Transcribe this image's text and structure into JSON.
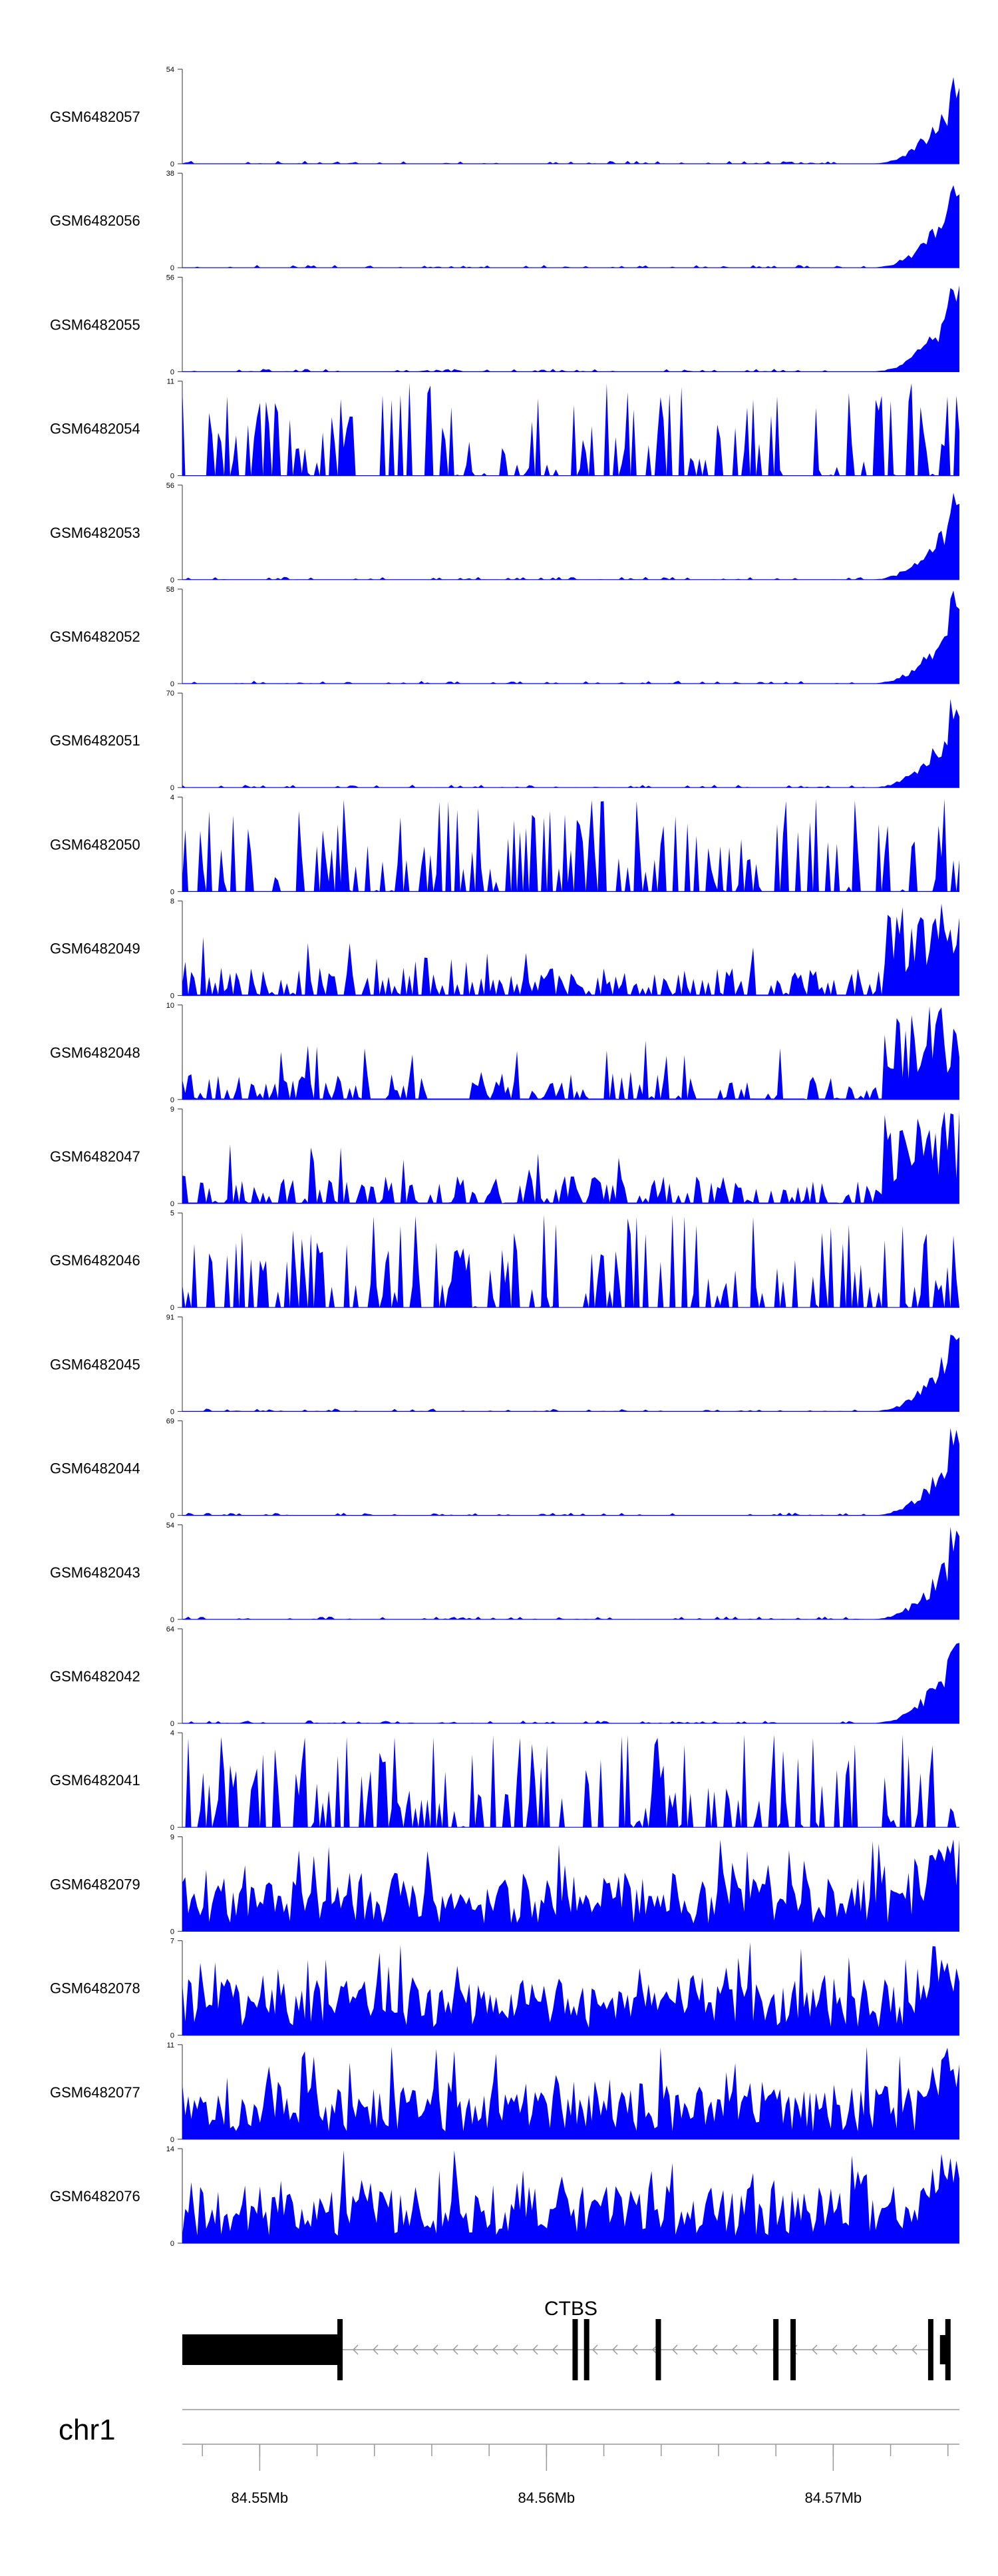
{
  "chart_data": {
    "type": "area",
    "fill_color": "#0000ff",
    "x_domain": [
      84.5473,
      84.5744
    ],
    "tracks": [
      {
        "name": "GSM6482057",
        "ymax": 54,
        "ymin": 0,
        "profile": "right_peak"
      },
      {
        "name": "GSM6482056",
        "ymax": 38,
        "ymin": 0,
        "profile": "right_peak"
      },
      {
        "name": "GSM6482055",
        "ymax": 56,
        "ymin": 0,
        "profile": "right_peak"
      },
      {
        "name": "GSM6482054",
        "ymax": 11,
        "ymin": 0,
        "profile": "sparse"
      },
      {
        "name": "GSM6482053",
        "ymax": 56,
        "ymin": 0,
        "profile": "right_peak"
      },
      {
        "name": "GSM6482052",
        "ymax": 58,
        "ymin": 0,
        "profile": "right_peak"
      },
      {
        "name": "GSM6482051",
        "ymax": 70,
        "ymin": 0,
        "profile": "right_peak"
      },
      {
        "name": "GSM6482050",
        "ymax": 4,
        "ymin": 0,
        "profile": "sparse"
      },
      {
        "name": "GSM6482049",
        "ymax": 8,
        "ymin": 0,
        "profile": "moderate"
      },
      {
        "name": "GSM6482048",
        "ymax": 10,
        "ymin": 0,
        "profile": "moderate"
      },
      {
        "name": "GSM6482047",
        "ymax": 9,
        "ymin": 0,
        "profile": "moderate"
      },
      {
        "name": "GSM6482046",
        "ymax": 5,
        "ymin": 0,
        "profile": "sparse"
      },
      {
        "name": "GSM6482045",
        "ymax": 91,
        "ymin": 0,
        "profile": "right_peak"
      },
      {
        "name": "GSM6482044",
        "ymax": 69,
        "ymin": 0,
        "profile": "right_peak"
      },
      {
        "name": "GSM6482043",
        "ymax": 54,
        "ymin": 0,
        "profile": "right_peak"
      },
      {
        "name": "GSM6482042",
        "ymax": 64,
        "ymin": 0,
        "profile": "right_peak"
      },
      {
        "name": "GSM6482041",
        "ymax": 4,
        "ymin": 0,
        "profile": "sparse"
      },
      {
        "name": "GSM6482079",
        "ymax": 9,
        "ymin": 0,
        "profile": "dense"
      },
      {
        "name": "GSM6482078",
        "ymax": 7,
        "ymin": 0,
        "profile": "dense"
      },
      {
        "name": "GSM6482077",
        "ymax": 11,
        "ymin": 0,
        "profile": "dense"
      },
      {
        "name": "GSM6482076",
        "ymax": 14,
        "ymin": 0,
        "profile": "dense"
      }
    ],
    "gene": {
      "name": "CTBS",
      "strand": "-",
      "thick_block": [
        84.5473,
        84.5528
      ],
      "exons": [
        84.5528,
        84.561,
        84.5614,
        84.5639,
        84.568,
        84.5686,
        84.5734,
        84.574
      ],
      "intron_span": [
        84.5528,
        84.5734
      ]
    },
    "axis": {
      "chromosome": "chr1",
      "ticks": [
        {
          "value": 84.55,
          "label": "84.55Mb"
        },
        {
          "value": 84.56,
          "label": "84.56Mb"
        },
        {
          "value": 84.57,
          "label": "84.57Mb"
        }
      ],
      "minor_ticks": [
        84.548,
        84.55,
        84.552,
        84.554,
        84.556,
        84.558,
        84.56,
        84.562,
        84.564,
        84.566,
        84.568,
        84.57,
        84.572,
        84.574
      ]
    }
  }
}
